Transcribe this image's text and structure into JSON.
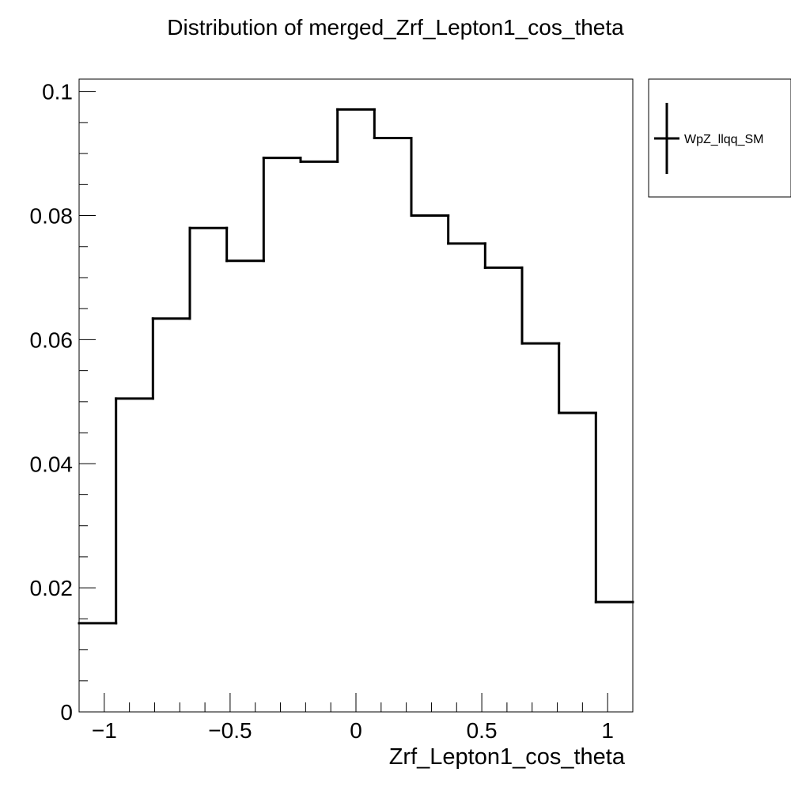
{
  "chart_data": {
    "type": "histogram",
    "title": "Distribution of merged_Zrf_Lepton1_cos_theta",
    "xlabel": "Zrf_Lepton1_cos_theta",
    "ylabel": "",
    "xlim": [
      -1.1,
      1.1
    ],
    "ylim": [
      0,
      0.102
    ],
    "x_ticks": [
      -1,
      -0.5,
      0,
      0.5,
      1
    ],
    "x_tick_labels": [
      "−1",
      "−0.5",
      "0",
      "0.5",
      "1"
    ],
    "y_ticks": [
      0,
      0.02,
      0.04,
      0.06,
      0.08,
      0.1
    ],
    "y_tick_labels": [
      "0",
      "0.02",
      "0.04",
      "0.06",
      "0.08",
      "0.1"
    ],
    "bin_edges": [
      -1.1,
      -0.9533,
      -0.8067,
      -0.66,
      -0.5133,
      -0.3667,
      -0.22,
      -0.0733,
      0.0733,
      0.22,
      0.3667,
      0.5133,
      0.66,
      0.8067,
      0.9533,
      1.1
    ],
    "series": [
      {
        "name": "WpZ_llqq_SM",
        "color": "#000000",
        "values": [
          0.0143,
          0.0505,
          0.0634,
          0.078,
          0.0727,
          0.0893,
          0.0887,
          0.0971,
          0.0925,
          0.08,
          0.0755,
          0.0716,
          0.0594,
          0.0482,
          0.0177
        ]
      }
    ],
    "legend_position": "top-right, outside plot area",
    "grid": false
  }
}
